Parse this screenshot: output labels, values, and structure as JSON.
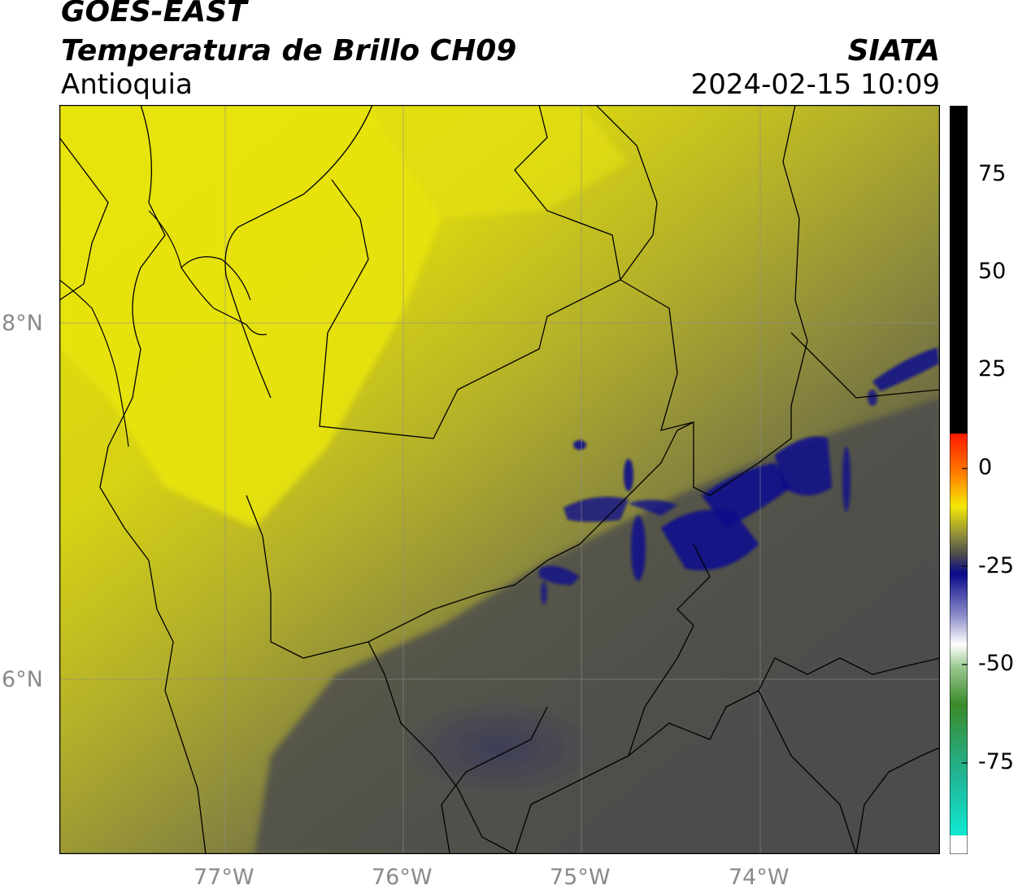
{
  "header": {
    "satellite": "GOES-EAST",
    "product": "Temperatura de Brillo CH09",
    "region": "Antioquia",
    "agency": "SIATA",
    "timestamp": "2024-02-15 10:09"
  },
  "axes": {
    "lat_labels": [
      "8°N",
      "6°N"
    ],
    "lon_labels": [
      "77°W",
      "76°W",
      "75°W",
      "74°W"
    ]
  },
  "colorbar": {
    "ticks": [
      "75",
      "50",
      "25",
      "0",
      "-25",
      "-50",
      "-75"
    ],
    "colors": {
      "yellow": "#e6e20a",
      "olive": "#8c8a3c",
      "dark_gray": "#4b4b4d",
      "navy": "#0a0a8c",
      "red": "#ff2000",
      "green": "#3a8a2a",
      "cyan": "#10e8d0",
      "black": "#000000"
    }
  }
}
